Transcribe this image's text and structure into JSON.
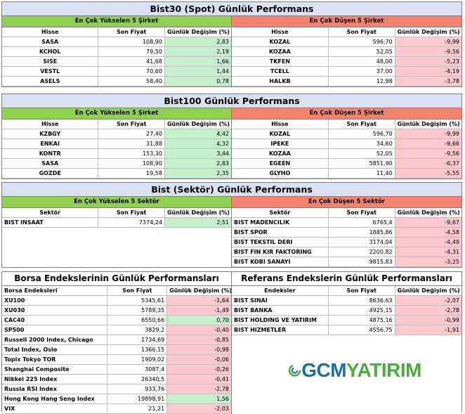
{
  "colors": {
    "header_bg": "#d9e1f2",
    "up": "#92d050",
    "down": "#f4826d",
    "pos_cell": "#c6efce",
    "neg_cell": "#ffc7ce",
    "logo_green": "#4cae3f",
    "logo_blue": "#1f6fa7"
  },
  "bist30": {
    "title": "Bist30 (Spot) Günlük Performans",
    "gainers_title": "En Çok Yükselen 5 Şirket",
    "losers_title": "En Çok Düşen 5 Şirket",
    "headers": [
      "Hisse",
      "Son Fiyat",
      "Günlük Değişim (%)"
    ],
    "gainers": [
      [
        "SASA",
        "108,90",
        "2,83"
      ],
      [
        "KCHOL",
        "79,50",
        "2,19"
      ],
      [
        "SISE",
        "41,68",
        "1,66"
      ],
      [
        "VESTL",
        "70,60",
        "1,44"
      ],
      [
        "ASELS",
        "58,40",
        "0,78"
      ]
    ],
    "losers": [
      [
        "KOZAL",
        "596,70",
        "-9,99"
      ],
      [
        "KOZAA",
        "52,05",
        "-9,56"
      ],
      [
        "TKFEN",
        "48,00",
        "-5,23"
      ],
      [
        "TCELL",
        "37,00",
        "-4,19"
      ],
      [
        "HALKB",
        "12,98",
        "-3,78"
      ]
    ]
  },
  "bist100": {
    "title": "Bist100 Günlük Performans",
    "gainers_title": "En Çok Yükselen 5 Şirket",
    "losers_title": "En Çok Düşen 5 Şirket",
    "headers": [
      "Hisse",
      "Son Fiyat",
      "Günlük Değişim (%)"
    ],
    "gainers": [
      [
        "KZBGY",
        "27,40",
        "4,42"
      ],
      [
        "ENKAI",
        "31,88",
        "4,32"
      ],
      [
        "KONTR",
        "153,30",
        "3,44"
      ],
      [
        "SASA",
        "108,90",
        "2,83"
      ],
      [
        "GOZDE",
        "19,58",
        "2,35"
      ]
    ],
    "losers": [
      [
        "KOZAL",
        "596,70",
        "-9,99"
      ],
      [
        "IPEKE",
        "34,60",
        "-9,66"
      ],
      [
        "KOZAA",
        "52,05",
        "-9,56"
      ],
      [
        "EGEEN",
        "5851,90",
        "-6,37"
      ],
      [
        "GLYHO",
        "11,40",
        "-5,55"
      ]
    ]
  },
  "sector": {
    "title": "Bist (Sektör) Günlük Performans",
    "gainers_title": "En Çok Yükselen 5 Sektör",
    "losers_title": "En Çok Düşen 5 Sektör",
    "headers": [
      "Sektör",
      "Son Fiyat",
      "Günlük Değişim (%)"
    ],
    "gainers": [
      [
        "BIST INSAAT",
        "7374,24",
        "2,51"
      ]
    ],
    "losers": [
      [
        "BIST MADENCILIK",
        "6765,4",
        "-9,67"
      ],
      [
        "BIST SPOR",
        "1885,86",
        "-4,58"
      ],
      [
        "BIST TEKSTIL DERI",
        "3174,04",
        "-4,49"
      ],
      [
        "BIST FIN KIR FAKTORING",
        "2200,82",
        "-4,31"
      ],
      [
        "BIST KOBI SANAYI",
        "9815,83",
        "-3,25"
      ]
    ]
  },
  "indices": {
    "left_title": "Borsa Endekslerinin Günlük Performansları",
    "right_title": "Referans Endekslerin  Günlük Performansları",
    "left_headers": [
      "Borsa Endeksleri",
      "Son Fiyat",
      "Günlük Değişim (%)"
    ],
    "right_headers": [
      "Endeksler",
      "Son Fiyat",
      "Günlük Değişim (%)"
    ],
    "left": [
      [
        "XU100",
        "5345,61",
        "-1,64"
      ],
      [
        "XU030",
        "5789,35",
        "-1,49"
      ],
      [
        "CAC40",
        "6550,66",
        "0,70"
      ],
      [
        "SP500",
        "3829,2",
        "-0,40"
      ],
      [
        "Russell 2000 Index, Chicago",
        "1734,69",
        "-0,85"
      ],
      [
        "Total Index, Oslo",
        "1366,15",
        "-0,98"
      ],
      [
        "Topix Tokyo TOR",
        "1909,02",
        "-0,06"
      ],
      [
        "Shanghai Composite",
        "3087,4",
        "-0,26"
      ],
      [
        "Nikkei 225 Index",
        "26340,5",
        "-0,41"
      ],
      [
        "Russia RSI Index",
        "933,76",
        "-2,78"
      ],
      [
        "Hong Kong Hang Seng Index",
        "19898,91",
        "1,56"
      ],
      [
        "VIX",
        "21,21",
        "-2,03"
      ]
    ],
    "right": [
      [
        "BIST SINAI",
        "8636,63",
        "-2,07"
      ],
      [
        "BIST BANKA",
        "4925,15",
        "-2,78"
      ],
      [
        "BIST HOLDING VE YATIRIM",
        "4875,16",
        "-0,99"
      ],
      [
        "BIST HIZMETLER",
        "4556,75",
        "-1,91"
      ]
    ]
  },
  "logo": {
    "prefix": "GCM",
    "suffix": "YATIRIM",
    "icon": "gcm-swirl-icon"
  }
}
